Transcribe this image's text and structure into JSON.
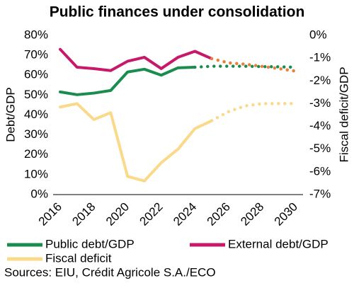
{
  "chart_data": {
    "type": "line",
    "title": "Public finances under consolidation",
    "y_label": "Debt/GDP",
    "y2_label": "Fiscal deficit/GDP",
    "source": "Sources: EIU, Crédit Agricole S.A./ECO",
    "x": [
      2016,
      2017,
      2018,
      2019,
      2020,
      2021,
      2022,
      2023,
      2024,
      2025,
      2026,
      2027,
      2028,
      2029,
      2030
    ],
    "xlim": [
      2016,
      2030
    ],
    "xticks": [
      2016,
      2018,
      2020,
      2022,
      2024,
      2026,
      2028,
      2030
    ],
    "ylim": [
      0,
      80
    ],
    "yticks": [
      {
        "value": 0,
        "label": "0%"
      },
      {
        "value": 10,
        "label": "10%"
      },
      {
        "value": 20,
        "label": "20%"
      },
      {
        "value": 30,
        "label": "30%"
      },
      {
        "value": 40,
        "label": "40%"
      },
      {
        "value": 50,
        "label": "50%"
      },
      {
        "value": 60,
        "label": "60%"
      },
      {
        "value": 70,
        "label": "70%"
      },
      {
        "value": 80,
        "label": "80%"
      }
    ],
    "y2lim": [
      -7,
      0
    ],
    "y2ticks": [
      {
        "value": 0,
        "label": "0%"
      },
      {
        "value": -1,
        "label": "-1%"
      },
      {
        "value": -2,
        "label": "-2%"
      },
      {
        "value": -3,
        "label": "-3%"
      },
      {
        "value": -4,
        "label": "-4%"
      },
      {
        "value": -5,
        "label": "-5%"
      },
      {
        "value": -6,
        "label": "-6%"
      },
      {
        "value": -7,
        "label": "-7%"
      }
    ],
    "series": [
      {
        "name": "Public debt/GDP",
        "color": "#1a8c4e",
        "forecast_from": 2024,
        "forecast_color": "#1a8c4e",
        "values": [
          51.6,
          50.2,
          51,
          52.3,
          61.6,
          63,
          60,
          63.7,
          64,
          64.5,
          64.5,
          64.5,
          64.3,
          64.2,
          64
        ]
      },
      {
        "name": "External debt/GDP",
        "color": "#c8186a",
        "forecast_from": 2025,
        "forecast_color": "#e8803a",
        "values": [
          73,
          64,
          63.3,
          62.3,
          67,
          69,
          63.3,
          69,
          72,
          68.3,
          66.2,
          65.5,
          64.4,
          63.3,
          62
        ]
      },
      {
        "name": "Fiscal deficit",
        "color": "#fbd98a",
        "axis": "y2",
        "forecast_from": 2025,
        "forecast_color": "#fbd98a",
        "values": [
          -3.15,
          -3.0,
          -3.7,
          -3.4,
          -6.2,
          -6.4,
          -5.6,
          -5.0,
          -4.1,
          -3.75,
          -3.35,
          -3.1,
          -3.0,
          -3.0,
          -3.0
        ]
      }
    ]
  }
}
